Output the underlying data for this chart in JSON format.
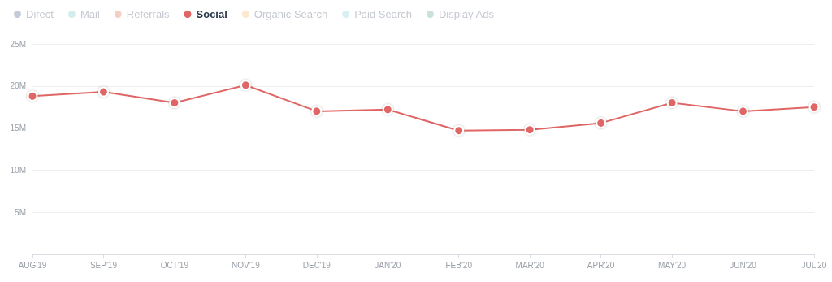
{
  "chart_data": {
    "type": "line",
    "categories": [
      "AUG'19",
      "SEP'19",
      "OCT'19",
      "NOV'19",
      "DEC'19",
      "JAN'20",
      "FEB'20",
      "MAR'20",
      "APR'20",
      "MAY'20",
      "JUN'20",
      "JUL'20"
    ],
    "series": [
      {
        "name": "Direct",
        "color": "#c3cad8",
        "values": [
          null,
          null,
          null,
          null,
          null,
          null,
          null,
          null,
          null,
          null,
          null,
          null
        ]
      },
      {
        "name": "Mail",
        "color": "#d3ecec",
        "values": [
          null,
          null,
          null,
          null,
          null,
          null,
          null,
          null,
          null,
          null,
          null,
          null
        ]
      },
      {
        "name": "Referrals",
        "color": "#f6cfc4",
        "values": [
          null,
          null,
          null,
          null,
          null,
          null,
          null,
          null,
          null,
          null,
          null,
          null
        ]
      },
      {
        "name": "Social",
        "color": "#e06666",
        "values": [
          18.8,
          19.3,
          18.0,
          20.1,
          17.0,
          17.2,
          14.7,
          14.8,
          15.6,
          18.0,
          17.0,
          17.5
        ]
      },
      {
        "name": "Organic Search",
        "color": "#fbe8cd",
        "values": [
          null,
          null,
          null,
          null,
          null,
          null,
          null,
          null,
          null,
          null,
          null,
          null
        ]
      },
      {
        "name": "Paid Search",
        "color": "#d8eff3",
        "values": [
          null,
          null,
          null,
          null,
          null,
          null,
          null,
          null,
          null,
          null,
          null,
          null
        ]
      },
      {
        "name": "Display Ads",
        "color": "#c9e2de",
        "values": [
          null,
          null,
          null,
          null,
          null,
          null,
          null,
          null,
          null,
          null,
          null,
          null
        ]
      }
    ],
    "ylim": [
      0,
      25
    ],
    "yticks": [
      {
        "value": 0,
        "label": null
      },
      {
        "value": 5,
        "label": "5M"
      },
      {
        "value": 10,
        "label": "10M"
      },
      {
        "value": 15,
        "label": "15M"
      },
      {
        "value": 20,
        "label": "20M"
      },
      {
        "value": 25,
        "label": "25M"
      }
    ],
    "grid": "y",
    "legend": "top left",
    "marker": "circle",
    "line_style": "solid"
  }
}
